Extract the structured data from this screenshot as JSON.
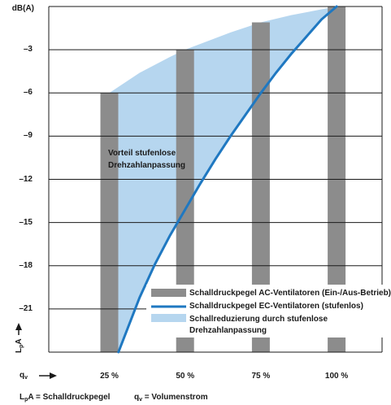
{
  "chart_data": {
    "type": "bar",
    "ylabel": "dB(A)",
    "y_ticks": [
      0,
      -3,
      -6,
      -9,
      -12,
      -15,
      -18,
      -21
    ],
    "y_tick_labels": [
      "",
      "–3",
      "–6",
      "–9",
      "–12",
      "–15",
      "–18",
      "–21"
    ],
    "ylim": [
      -24,
      0
    ],
    "categories": [
      "25 %",
      "50 %",
      "75 %",
      "100 %"
    ],
    "category_values": [
      25,
      50,
      75,
      100
    ],
    "xlim": [
      5,
      115
    ],
    "series": [
      {
        "name": "Schalldruckpegel AC-Ventilatoren (Ein-/Aus-Betrieb)",
        "type": "bar",
        "values": [
          -6,
          -3,
          -1.1,
          0
        ]
      },
      {
        "name": "Schalldruckpegel EC-Ventilatoren (stufenlos)",
        "type": "line",
        "x": [
          28,
          35,
          40,
          45,
          50,
          55,
          60,
          65,
          70,
          75,
          80,
          85,
          90,
          95,
          100
        ],
        "values": [
          -24,
          -20.2,
          -17.9,
          -15.9,
          -14.1,
          -12.3,
          -10.6,
          -9.0,
          -7.5,
          -6.0,
          -4.6,
          -3.3,
          -2.1,
          -0.9,
          0
        ]
      },
      {
        "name": "Schallreduzierung durch stufenlose Drehzahlanpassung",
        "type": "area",
        "upper_x": [
          25,
          35,
          45,
          50,
          55,
          65,
          75,
          85,
          95,
          100
        ],
        "upper_values": [
          -6,
          -4.6,
          -3.5,
          -3.0,
          -2.6,
          -1.8,
          -1.1,
          -0.6,
          -0.2,
          0
        ]
      }
    ],
    "annotations": [
      {
        "text_lines": [
          "Vorteil stufenlose",
          "Drehzahlanpassung"
        ]
      }
    ],
    "legend_position": "bottom-right",
    "grid": true
  },
  "labels": {
    "y_axis_title": "dB(A)",
    "la_axis": {
      "L": "L",
      "p": "p",
      "A": "A"
    },
    "qv_axis": {
      "q": "q",
      "v": "v"
    },
    "legend": {
      "ac": "Schalldruckpegel AC-Ventilatoren (Ein-/Aus-Betrieb)",
      "ec": "Schalldruckpegel EC-Ventilatoren (stufenlos)",
      "area_line1": "Schallreduzierung durch stufenlose",
      "area_line2": "Drehzahlanpassung"
    },
    "annotation_line1": "Vorteil stufenlose",
    "annotation_line2": "Drehzahlanpassung",
    "footer": {
      "la_L": "L",
      "la_p": "p",
      "la_rest": "A = Schalldruckpegel",
      "qv_q": "q",
      "qv_v": "v",
      "qv_rest": " = Volumenstrom"
    }
  },
  "colors": {
    "bar": "#8c8c8c",
    "ec_line": "#1f78c1",
    "area": "#b6d6ef",
    "grid": "#1a1a1a",
    "text": "#1a1a1a"
  }
}
